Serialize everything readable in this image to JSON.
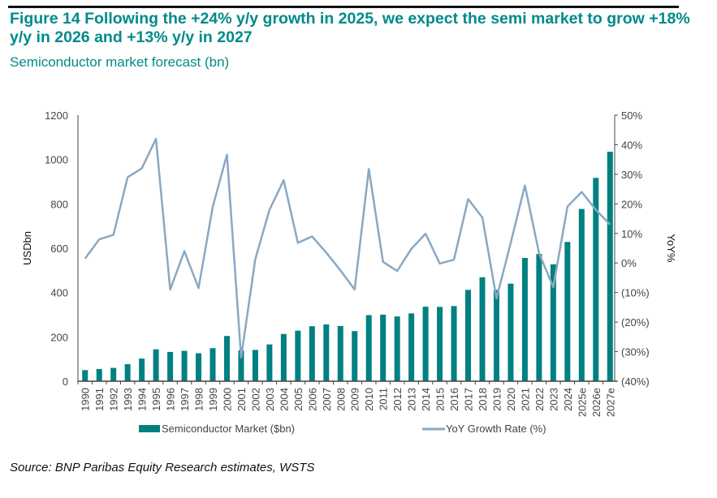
{
  "title": "Figure 14 Following the +24% y/y growth in 2025, we expect the semi market to grow +18% y/y in 2026 and +13% y/y in 2027",
  "subtitle": "Semiconductor market forecast (bn)",
  "source": "Source: BNP Paribas Equity Research estimates, WSTS",
  "chart_data": {
    "type": "bar+line",
    "categories": [
      "1990",
      "1991",
      "1992",
      "1993",
      "1994",
      "1995",
      "1996",
      "1997",
      "1998",
      "1999",
      "2000",
      "2001",
      "2002",
      "2003",
      "2004",
      "2005",
      "2006",
      "2007",
      "2008",
      "2009",
      "2010",
      "2011",
      "2012",
      "2013",
      "2014",
      "2015",
      "2016",
      "2017",
      "2018",
      "2019",
      "2020",
      "2021",
      "2022",
      "2023",
      "2024",
      "2025e",
      "2026e",
      "2027e"
    ],
    "series": [
      {
        "name": "Semiconductor Market ($bn)",
        "type": "bar",
        "axis": "left",
        "color": "#008080",
        "values": [
          50,
          55,
          60,
          77,
          102,
          144,
          132,
          137,
          126,
          149,
          204,
          139,
          141,
          166,
          213,
          228,
          248,
          256,
          249,
          226,
          298,
          300,
          292,
          306,
          336,
          335,
          339,
          412,
          469,
          412,
          440,
          556,
          574,
          527,
          628,
          777,
          917,
          1035
        ]
      },
      {
        "name": "YoY Growth Rate (%)",
        "type": "line",
        "axis": "right",
        "color": "#8aa8c3",
        "values": [
          1.5,
          8,
          9.5,
          29,
          32,
          42,
          -9,
          4,
          -8.5,
          19,
          36.6,
          -32,
          1.3,
          18,
          28,
          6.8,
          9,
          3.5,
          -2.5,
          -9,
          31.8,
          0.4,
          -2.7,
          4.8,
          9.9,
          -0.2,
          1.1,
          21.6,
          15.4,
          -12,
          6.8,
          26.2,
          3.3,
          -8.2,
          19.1,
          24,
          18,
          13
        ]
      }
    ],
    "ylabel": "USDbn",
    "ylim": [
      0,
      1200
    ],
    "yticks": [
      "0",
      "200",
      "400",
      "600",
      "800",
      "1000",
      "1200"
    ],
    "y2label": "YoY%",
    "y2lim": [
      -40,
      50
    ],
    "y2ticks": [
      "(40%)",
      "(30%)",
      "(20%)",
      "(10%)",
      "0%",
      "10%",
      "20%",
      "30%",
      "40%",
      "50%"
    ],
    "grid": false,
    "legend": "bottom"
  }
}
